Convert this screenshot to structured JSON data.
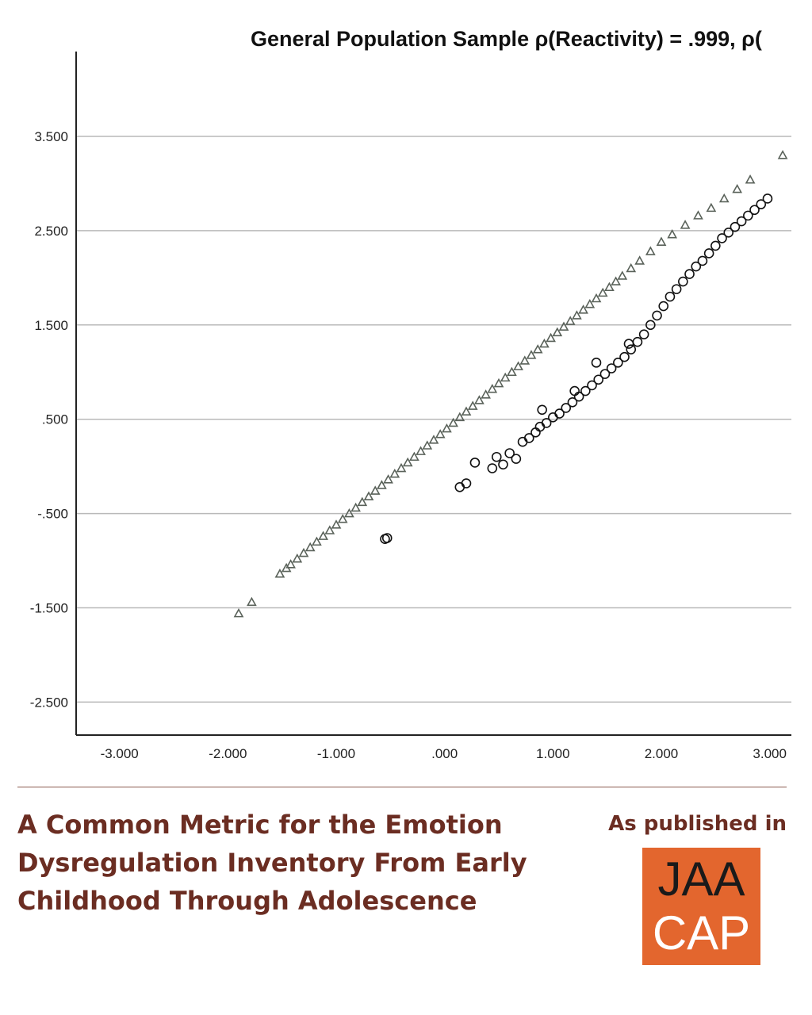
{
  "chart_data": {
    "type": "scatter",
    "title": "General Population Sample ρ(Reactivity) = .999, ρ(",
    "xlabel": "",
    "ylabel": "",
    "xlim": [
      -3.4,
      3.2
    ],
    "ylim": [
      -2.85,
      4.4
    ],
    "x_ticks": [
      -3,
      -2,
      -1,
      0,
      1,
      2,
      3
    ],
    "x_tick_labels": [
      "-3.000",
      "-2.000",
      "-1.000",
      ".000",
      "1.000",
      "2.000",
      "3.000"
    ],
    "y_ticks": [
      -2.5,
      -1.5,
      -0.5,
      0.5,
      1.5,
      2.5,
      3.5
    ],
    "y_tick_labels": [
      "-2.500",
      "-1.500",
      "-.500",
      ".500",
      "1.500",
      "2.500",
      "3.500"
    ],
    "grid": "horizontal",
    "series": [
      {
        "marker": "triangle",
        "color": "#5a625a",
        "points": [
          [
            -1.9,
            -1.56
          ],
          [
            -1.78,
            -1.44
          ],
          [
            -1.52,
            -1.14
          ],
          [
            -1.46,
            -1.08
          ],
          [
            -1.42,
            -1.04
          ],
          [
            -1.36,
            -0.98
          ],
          [
            -1.3,
            -0.92
          ],
          [
            -1.24,
            -0.86
          ],
          [
            -1.18,
            -0.8
          ],
          [
            -1.12,
            -0.74
          ],
          [
            -1.06,
            -0.68
          ],
          [
            -1.0,
            -0.62
          ],
          [
            -0.94,
            -0.56
          ],
          [
            -0.88,
            -0.5
          ],
          [
            -0.82,
            -0.44
          ],
          [
            -0.76,
            -0.38
          ],
          [
            -0.7,
            -0.32
          ],
          [
            -0.64,
            -0.26
          ],
          [
            -0.58,
            -0.2
          ],
          [
            -0.52,
            -0.14
          ],
          [
            -0.46,
            -0.08
          ],
          [
            -0.4,
            -0.02
          ],
          [
            -0.34,
            0.04
          ],
          [
            -0.28,
            0.1
          ],
          [
            -0.22,
            0.16
          ],
          [
            -0.16,
            0.22
          ],
          [
            -0.1,
            0.28
          ],
          [
            -0.04,
            0.34
          ],
          [
            0.02,
            0.4
          ],
          [
            0.08,
            0.46
          ],
          [
            0.14,
            0.52
          ],
          [
            0.2,
            0.58
          ],
          [
            0.26,
            0.64
          ],
          [
            0.32,
            0.7
          ],
          [
            0.38,
            0.76
          ],
          [
            0.44,
            0.82
          ],
          [
            0.5,
            0.88
          ],
          [
            0.56,
            0.94
          ],
          [
            0.62,
            1.0
          ],
          [
            0.68,
            1.06
          ],
          [
            0.74,
            1.12
          ],
          [
            0.8,
            1.18
          ],
          [
            0.86,
            1.24
          ],
          [
            0.92,
            1.3
          ],
          [
            0.98,
            1.36
          ],
          [
            1.04,
            1.42
          ],
          [
            1.1,
            1.48
          ],
          [
            1.16,
            1.54
          ],
          [
            1.22,
            1.6
          ],
          [
            1.28,
            1.66
          ],
          [
            1.34,
            1.72
          ],
          [
            1.4,
            1.78
          ],
          [
            1.46,
            1.84
          ],
          [
            1.52,
            1.9
          ],
          [
            1.58,
            1.96
          ],
          [
            1.64,
            2.02
          ],
          [
            1.72,
            2.1
          ],
          [
            1.8,
            2.18
          ],
          [
            1.9,
            2.28
          ],
          [
            2.0,
            2.38
          ],
          [
            2.1,
            2.46
          ],
          [
            2.22,
            2.56
          ],
          [
            2.34,
            2.66
          ],
          [
            2.46,
            2.74
          ],
          [
            2.58,
            2.84
          ],
          [
            2.7,
            2.94
          ],
          [
            2.82,
            3.04
          ],
          [
            3.12,
            3.3
          ]
        ]
      },
      {
        "marker": "circle",
        "color": "#111111",
        "points": [
          [
            -0.55,
            -0.77
          ],
          [
            -0.53,
            -0.76
          ],
          [
            0.14,
            -0.22
          ],
          [
            0.2,
            -0.18
          ],
          [
            0.28,
            0.04
          ],
          [
            0.44,
            -0.02
          ],
          [
            0.48,
            0.1
          ],
          [
            0.54,
            0.02
          ],
          [
            0.6,
            0.14
          ],
          [
            0.66,
            0.08
          ],
          [
            0.72,
            0.26
          ],
          [
            0.78,
            0.3
          ],
          [
            0.84,
            0.36
          ],
          [
            0.88,
            0.42
          ],
          [
            0.94,
            0.46
          ],
          [
            1.0,
            0.52
          ],
          [
            1.06,
            0.56
          ],
          [
            1.12,
            0.62
          ],
          [
            1.18,
            0.68
          ],
          [
            1.24,
            0.74
          ],
          [
            1.3,
            0.8
          ],
          [
            1.36,
            0.86
          ],
          [
            1.42,
            0.92
          ],
          [
            1.48,
            0.98
          ],
          [
            1.54,
            1.04
          ],
          [
            1.6,
            1.1
          ],
          [
            1.66,
            1.16
          ],
          [
            1.72,
            1.24
          ],
          [
            1.78,
            1.32
          ],
          [
            1.84,
            1.4
          ],
          [
            1.9,
            1.5
          ],
          [
            1.96,
            1.6
          ],
          [
            2.02,
            1.7
          ],
          [
            2.08,
            1.8
          ],
          [
            2.14,
            1.88
          ],
          [
            2.2,
            1.96
          ],
          [
            2.26,
            2.04
          ],
          [
            2.32,
            2.12
          ],
          [
            2.38,
            2.18
          ],
          [
            2.44,
            2.26
          ],
          [
            2.5,
            2.34
          ],
          [
            2.56,
            2.42
          ],
          [
            2.62,
            2.48
          ],
          [
            2.68,
            2.54
          ],
          [
            2.74,
            2.6
          ],
          [
            2.8,
            2.66
          ],
          [
            2.86,
            2.72
          ],
          [
            2.92,
            2.78
          ],
          [
            2.98,
            2.84
          ],
          [
            1.4,
            1.1
          ],
          [
            0.9,
            0.6
          ],
          [
            1.2,
            0.8
          ],
          [
            1.7,
            1.3
          ]
        ]
      }
    ]
  },
  "footer": {
    "title_lines": [
      "A Common Metric for the Emotion",
      "Dysregulation Inventory From Early",
      "Childhood Through Adolescence"
    ],
    "published_label": "As published in",
    "logo_line1": "JAA",
    "logo_line2": "CAP"
  },
  "colors": {
    "accent": "#6b2d22",
    "logo_bg": "#e3662e"
  }
}
